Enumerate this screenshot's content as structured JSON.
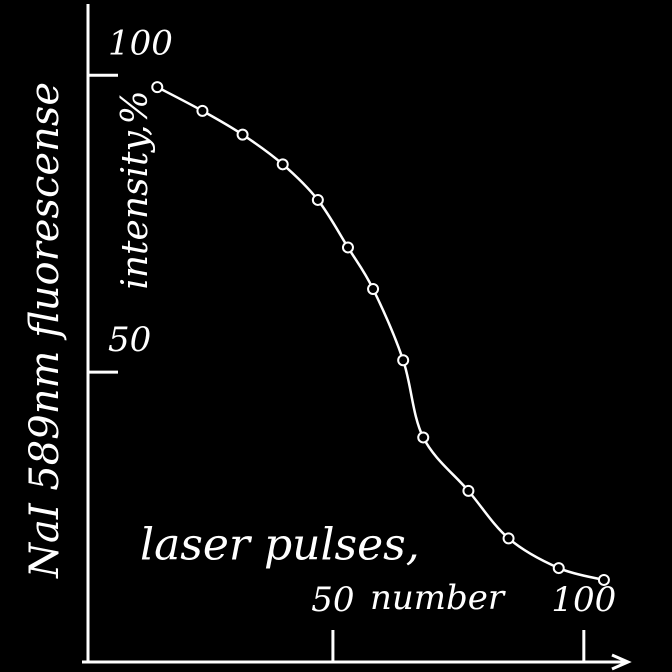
{
  "chart_data": {
    "type": "line",
    "ylabel": [
      "NaI 589nm fluorescense",
      "intensity,%"
    ],
    "xlabel": [
      "laser pulses,",
      "number"
    ],
    "x": [
      15,
      24,
      32,
      40,
      47,
      53,
      58,
      64,
      68,
      77,
      85,
      95,
      104
    ],
    "series": [
      {
        "color": "#ffffff",
        "values": [
          98,
          94,
          90,
          85,
          79,
          71,
          64,
          52,
          39,
          30,
          22,
          17,
          15
        ]
      }
    ],
    "xlim": [
      0,
      109
    ],
    "ylim": [
      0,
      112
    ],
    "xticks": [
      50,
      100
    ],
    "yticks": [
      50,
      100
    ]
  }
}
